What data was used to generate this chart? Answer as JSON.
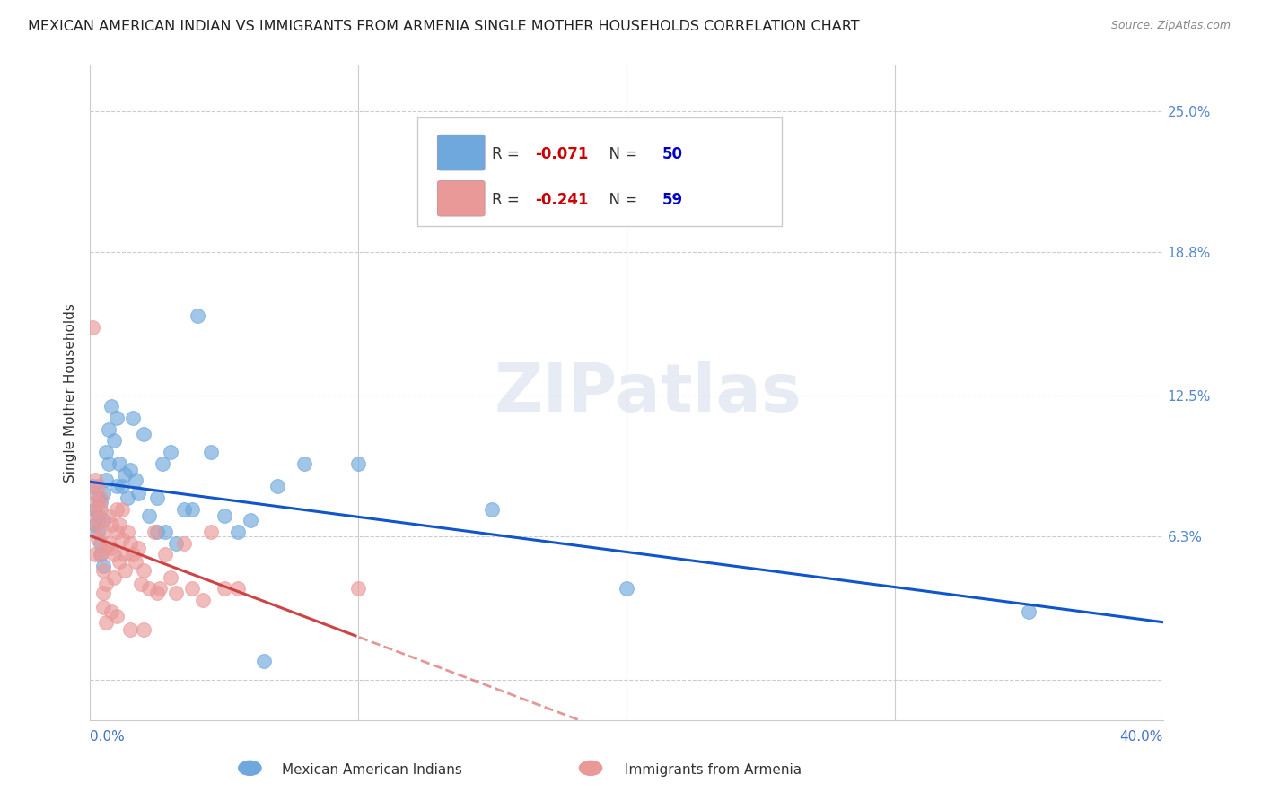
{
  "title": "MEXICAN AMERICAN INDIAN VS IMMIGRANTS FROM ARMENIA SINGLE MOTHER HOUSEHOLDS CORRELATION CHART",
  "source": "Source: ZipAtlas.com",
  "ylabel": "Single Mother Households",
  "yticks": [
    0.0,
    0.063,
    0.125,
    0.188,
    0.25
  ],
  "ytick_labels": [
    "",
    "6.3%",
    "12.5%",
    "18.8%",
    "25.0%"
  ],
  "xlim": [
    0.0,
    0.4
  ],
  "ylim": [
    -0.018,
    0.27
  ],
  "blue_R": -0.071,
  "blue_N": 50,
  "pink_R": -0.241,
  "pink_N": 59,
  "legend_label_blue": "Mexican American Indians",
  "legend_label_pink": "Immigrants from Armenia",
  "watermark": "ZIPatlas",
  "blue_color": "#6fa8dc",
  "pink_color": "#ea9999",
  "blue_line_color": "#1155cc",
  "pink_line_color": "#cc4444",
  "background_color": "#ffffff",
  "blue_scatter_x": [
    0.001,
    0.002,
    0.002,
    0.003,
    0.003,
    0.003,
    0.004,
    0.004,
    0.004,
    0.005,
    0.005,
    0.005,
    0.006,
    0.006,
    0.007,
    0.007,
    0.008,
    0.009,
    0.01,
    0.01,
    0.011,
    0.012,
    0.013,
    0.014,
    0.015,
    0.016,
    0.017,
    0.018,
    0.02,
    0.022,
    0.025,
    0.025,
    0.027,
    0.028,
    0.03,
    0.032,
    0.035,
    0.038,
    0.04,
    0.045,
    0.05,
    0.055,
    0.06,
    0.065,
    0.07,
    0.08,
    0.1,
    0.15,
    0.2,
    0.35
  ],
  "blue_scatter_y": [
    0.085,
    0.075,
    0.068,
    0.08,
    0.065,
    0.072,
    0.078,
    0.06,
    0.055,
    0.082,
    0.07,
    0.05,
    0.1,
    0.088,
    0.11,
    0.095,
    0.12,
    0.105,
    0.115,
    0.085,
    0.095,
    0.085,
    0.09,
    0.08,
    0.092,
    0.115,
    0.088,
    0.082,
    0.108,
    0.072,
    0.08,
    0.065,
    0.095,
    0.065,
    0.1,
    0.06,
    0.075,
    0.075,
    0.16,
    0.1,
    0.072,
    0.065,
    0.07,
    0.008,
    0.085,
    0.095,
    0.095,
    0.075,
    0.04,
    0.03
  ],
  "pink_scatter_x": [
    0.001,
    0.001,
    0.002,
    0.002,
    0.002,
    0.003,
    0.003,
    0.003,
    0.004,
    0.004,
    0.004,
    0.005,
    0.005,
    0.005,
    0.006,
    0.006,
    0.007,
    0.007,
    0.008,
    0.008,
    0.009,
    0.009,
    0.01,
    0.01,
    0.011,
    0.011,
    0.012,
    0.012,
    0.013,
    0.013,
    0.014,
    0.015,
    0.016,
    0.017,
    0.018,
    0.019,
    0.02,
    0.022,
    0.024,
    0.026,
    0.028,
    0.03,
    0.032,
    0.035,
    0.038,
    0.042,
    0.045,
    0.05,
    0.055,
    0.1,
    0.002,
    0.003,
    0.005,
    0.006,
    0.008,
    0.01,
    0.015,
    0.02,
    0.025
  ],
  "pink_scatter_y": [
    0.155,
    0.082,
    0.075,
    0.068,
    0.055,
    0.078,
    0.07,
    0.062,
    0.08,
    0.075,
    0.055,
    0.065,
    0.048,
    0.038,
    0.058,
    0.042,
    0.072,
    0.06,
    0.068,
    0.058,
    0.055,
    0.045,
    0.075,
    0.065,
    0.068,
    0.052,
    0.075,
    0.062,
    0.055,
    0.048,
    0.065,
    0.06,
    0.055,
    0.052,
    0.058,
    0.042,
    0.048,
    0.04,
    0.065,
    0.04,
    0.055,
    0.045,
    0.038,
    0.06,
    0.04,
    0.035,
    0.065,
    0.04,
    0.04,
    0.04,
    0.088,
    0.085,
    0.032,
    0.025,
    0.03,
    0.028,
    0.022,
    0.022,
    0.038
  ]
}
